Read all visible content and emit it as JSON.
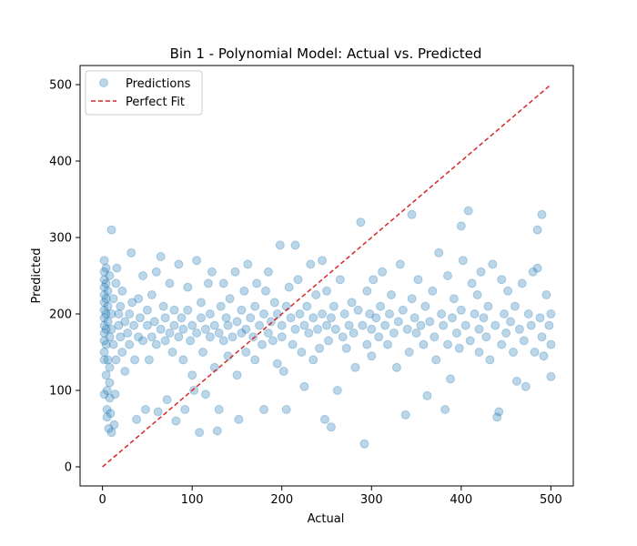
{
  "chart_data": {
    "type": "scatter",
    "title": "Bin 1 - Polynomial Model: Actual vs. Predicted",
    "xlabel": "Actual",
    "ylabel": "Predicted",
    "xlim": [
      -25,
      525
    ],
    "ylim": [
      -25,
      525
    ],
    "xticks": [
      0,
      100,
      200,
      300,
      400,
      500
    ],
    "yticks": [
      0,
      100,
      200,
      300,
      400,
      500
    ],
    "grid": false,
    "legend_position": "top-left",
    "colors": {
      "scatter": "#1f77b4",
      "fit_line": "#d62728"
    },
    "series": [
      {
        "name": "Predictions",
        "kind": "scatter",
        "opacity": 0.3,
        "points": [
          [
            2,
            95
          ],
          [
            2,
            140
          ],
          [
            2,
            150
          ],
          [
            2,
            165
          ],
          [
            2,
            175
          ],
          [
            2,
            185
          ],
          [
            2,
            195
          ],
          [
            2,
            205
          ],
          [
            2,
            215
          ],
          [
            2,
            225
          ],
          [
            2,
            235
          ],
          [
            2,
            245
          ],
          [
            2,
            255
          ],
          [
            2,
            270
          ],
          [
            4,
            120
          ],
          [
            4,
            160
          ],
          [
            4,
            180
          ],
          [
            4,
            200
          ],
          [
            4,
            220
          ],
          [
            4,
            240
          ],
          [
            4,
            260
          ],
          [
            5,
            65
          ],
          [
            5,
            75
          ],
          [
            5,
            100
          ],
          [
            6,
            140
          ],
          [
            6,
            190
          ],
          [
            6,
            210
          ],
          [
            6,
            230
          ],
          [
            7,
            50
          ],
          [
            8,
            90
          ],
          [
            8,
            110
          ],
          [
            8,
            130
          ],
          [
            8,
            170
          ],
          [
            8,
            250
          ],
          [
            9,
            70
          ],
          [
            10,
            45
          ],
          [
            10,
            310
          ],
          [
            10,
            200
          ],
          [
            10,
            180
          ],
          [
            12,
            160
          ],
          [
            12,
            220
          ],
          [
            13,
            55
          ],
          [
            14,
            95
          ],
          [
            15,
            240
          ],
          [
            15,
            140
          ],
          [
            16,
            260
          ],
          [
            18,
            200
          ],
          [
            18,
            185
          ],
          [
            20,
            170
          ],
          [
            20,
            210
          ],
          [
            22,
            150
          ],
          [
            22,
            230
          ],
          [
            25,
            190
          ],
          [
            25,
            125
          ],
          [
            28,
            175
          ],
          [
            30,
            200
          ],
          [
            30,
            160
          ],
          [
            32,
            280
          ],
          [
            33,
            215
          ],
          [
            35,
            185
          ],
          [
            36,
            140
          ],
          [
            38,
            62
          ],
          [
            40,
            170
          ],
          [
            40,
            220
          ],
          [
            42,
            195
          ],
          [
            45,
            250
          ],
          [
            45,
            165
          ],
          [
            48,
            75
          ],
          [
            50,
            185
          ],
          [
            50,
            205
          ],
          [
            52,
            140
          ],
          [
            55,
            170
          ],
          [
            55,
            225
          ],
          [
            58,
            190
          ],
          [
            60,
            160
          ],
          [
            60,
            255
          ],
          [
            62,
            72
          ],
          [
            65,
            180
          ],
          [
            65,
            275
          ],
          [
            68,
            210
          ],
          [
            70,
            165
          ],
          [
            70,
            195
          ],
          [
            72,
            88
          ],
          [
            75,
            175
          ],
          [
            75,
            240
          ],
          [
            78,
            150
          ],
          [
            80,
            185
          ],
          [
            80,
            205
          ],
          [
            82,
            60
          ],
          [
            85,
            170
          ],
          [
            85,
            265
          ],
          [
            88,
            195
          ],
          [
            90,
            180
          ],
          [
            90,
            140
          ],
          [
            92,
            75
          ],
          [
            95,
            205
          ],
          [
            95,
            235
          ],
          [
            98,
            165
          ],
          [
            100,
            185
          ],
          [
            100,
            120
          ],
          [
            102,
            100
          ],
          [
            105,
            175
          ],
          [
            105,
            270
          ],
          [
            108,
            45
          ],
          [
            110,
            195
          ],
          [
            110,
            215
          ],
          [
            112,
            150
          ],
          [
            115,
            180
          ],
          [
            115,
            95
          ],
          [
            118,
            240
          ],
          [
            120,
            170
          ],
          [
            120,
            200
          ],
          [
            122,
            255
          ],
          [
            125,
            130
          ],
          [
            125,
            185
          ],
          [
            128,
            47
          ],
          [
            130,
            75
          ],
          [
            130,
            175
          ],
          [
            132,
            210
          ],
          [
            135,
            165
          ],
          [
            135,
            240
          ],
          [
            138,
            195
          ],
          [
            140,
            185
          ],
          [
            140,
            145
          ],
          [
            142,
            220
          ],
          [
            145,
            170
          ],
          [
            148,
            255
          ],
          [
            150,
            190
          ],
          [
            150,
            120
          ],
          [
            152,
            62
          ],
          [
            155,
            175
          ],
          [
            155,
            205
          ],
          [
            158,
            230
          ],
          [
            160,
            180
          ],
          [
            160,
            150
          ],
          [
            162,
            265
          ],
          [
            165,
            195
          ],
          [
            168,
            170
          ],
          [
            170,
            210
          ],
          [
            170,
            140
          ],
          [
            172,
            240
          ],
          [
            175,
            185
          ],
          [
            178,
            160
          ],
          [
            180,
            200
          ],
          [
            180,
            75
          ],
          [
            182,
            230
          ],
          [
            185,
            175
          ],
          [
            185,
            255
          ],
          [
            188,
            190
          ],
          [
            190,
            165
          ],
          [
            192,
            215
          ],
          [
            195,
            200
          ],
          [
            195,
            135
          ],
          [
            198,
            290
          ],
          [
            200,
            185
          ],
          [
            200,
            170
          ],
          [
            202,
            125
          ],
          [
            205,
            210
          ],
          [
            205,
            75
          ],
          [
            208,
            235
          ],
          [
            210,
            195
          ],
          [
            212,
            160
          ],
          [
            215,
            180
          ],
          [
            215,
            290
          ],
          [
            218,
            245
          ],
          [
            220,
            200
          ],
          [
            222,
            150
          ],
          [
            225,
            185
          ],
          [
            225,
            105
          ],
          [
            228,
            210
          ],
          [
            230,
            175
          ],
          [
            232,
            265
          ],
          [
            235,
            195
          ],
          [
            235,
            140
          ],
          [
            238,
            225
          ],
          [
            240,
            180
          ],
          [
            242,
            155
          ],
          [
            245,
            200
          ],
          [
            245,
            270
          ],
          [
            248,
            62
          ],
          [
            250,
            185
          ],
          [
            250,
            230
          ],
          [
            252,
            165
          ],
          [
            255,
            195
          ],
          [
            255,
            52
          ],
          [
            258,
            210
          ],
          [
            260,
            180
          ],
          [
            262,
            100
          ],
          [
            265,
            245
          ],
          [
            268,
            170
          ],
          [
            270,
            200
          ],
          [
            272,
            155
          ],
          [
            275,
            185
          ],
          [
            278,
            215
          ],
          [
            280,
            175
          ],
          [
            282,
            130
          ],
          [
            285,
            205
          ],
          [
            288,
            320
          ],
          [
            290,
            185
          ],
          [
            292,
            30
          ],
          [
            295,
            160
          ],
          [
            295,
            230
          ],
          [
            298,
            200
          ],
          [
            300,
            180
          ],
          [
            300,
            145
          ],
          [
            302,
            245
          ],
          [
            305,
            195
          ],
          [
            308,
            170
          ],
          [
            310,
            210
          ],
          [
            312,
            255
          ],
          [
            315,
            185
          ],
          [
            318,
            160
          ],
          [
            320,
            200
          ],
          [
            322,
            225
          ],
          [
            325,
            175
          ],
          [
            328,
            130
          ],
          [
            330,
            190
          ],
          [
            332,
            265
          ],
          [
            335,
            205
          ],
          [
            338,
            68
          ],
          [
            340,
            180
          ],
          [
            342,
            150
          ],
          [
            345,
            330
          ],
          [
            345,
            220
          ],
          [
            348,
            195
          ],
          [
            350,
            175
          ],
          [
            352,
            245
          ],
          [
            355,
            185
          ],
          [
            358,
            160
          ],
          [
            360,
            210
          ],
          [
            362,
            93
          ],
          [
            365,
            190
          ],
          [
            368,
            230
          ],
          [
            370,
            170
          ],
          [
            372,
            140
          ],
          [
            375,
            280
          ],
          [
            378,
            200
          ],
          [
            380,
            185
          ],
          [
            382,
            75
          ],
          [
            385,
            160
          ],
          [
            385,
            250
          ],
          [
            388,
            115
          ],
          [
            390,
            195
          ],
          [
            392,
            220
          ],
          [
            395,
            175
          ],
          [
            398,
            155
          ],
          [
            400,
            315
          ],
          [
            400,
            205
          ],
          [
            402,
            270
          ],
          [
            405,
            185
          ],
          [
            408,
            335
          ],
          [
            410,
            165
          ],
          [
            412,
            240
          ],
          [
            415,
            200
          ],
          [
            418,
            225
          ],
          [
            420,
            180
          ],
          [
            420,
            150
          ],
          [
            422,
            255
          ],
          [
            425,
            195
          ],
          [
            428,
            170
          ],
          [
            430,
            210
          ],
          [
            432,
            140
          ],
          [
            435,
            265
          ],
          [
            438,
            185
          ],
          [
            440,
            65
          ],
          [
            442,
            72
          ],
          [
            445,
            245
          ],
          [
            445,
            160
          ],
          [
            448,
            200
          ],
          [
            450,
            175
          ],
          [
            452,
            230
          ],
          [
            455,
            190
          ],
          [
            458,
            150
          ],
          [
            460,
            210
          ],
          [
            462,
            112
          ],
          [
            465,
            180
          ],
          [
            468,
            240
          ],
          [
            470,
            165
          ],
          [
            472,
            105
          ],
          [
            475,
            200
          ],
          [
            478,
            185
          ],
          [
            480,
            255
          ],
          [
            482,
            150
          ],
          [
            485,
            310
          ],
          [
            485,
            260
          ],
          [
            488,
            195
          ],
          [
            490,
            330
          ],
          [
            490,
            170
          ],
          [
            492,
            145
          ],
          [
            495,
            225
          ],
          [
            498,
            185
          ],
          [
            500,
            160
          ],
          [
            500,
            118
          ],
          [
            500,
            200
          ]
        ]
      },
      {
        "name": "Perfect Fit",
        "kind": "line",
        "style": "dashed",
        "points": [
          [
            0,
            0
          ],
          [
            500,
            500
          ]
        ]
      }
    ]
  }
}
